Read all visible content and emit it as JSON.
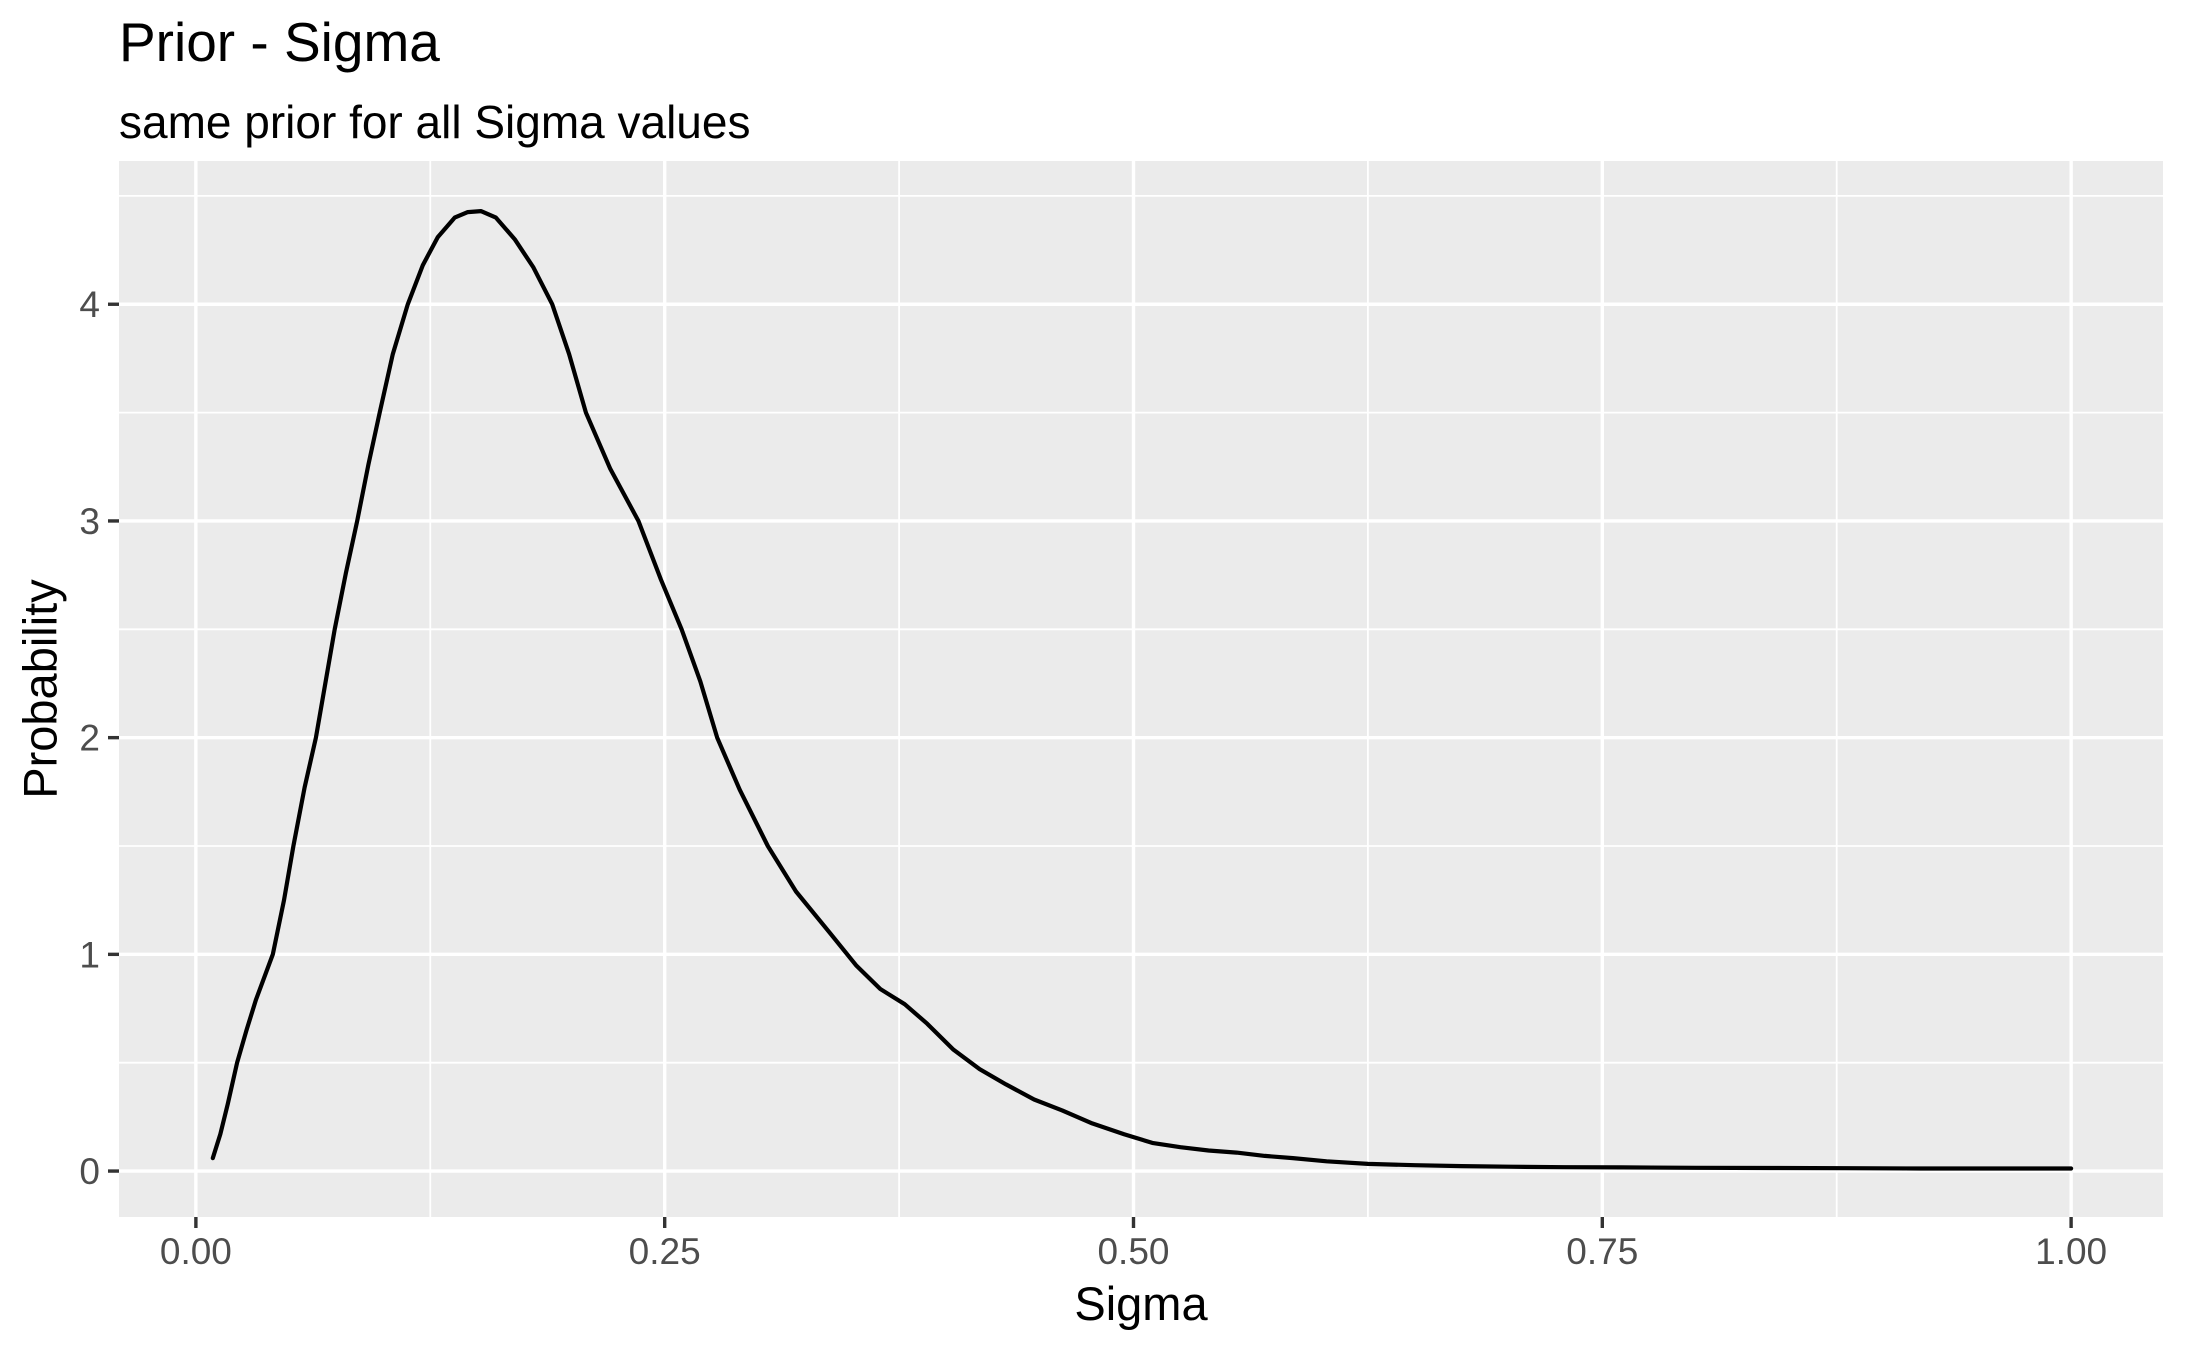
{
  "header": {
    "title": "Prior - Sigma",
    "subtitle": "same prior for all Sigma values"
  },
  "chart_data": {
    "type": "line",
    "title": "Prior - Sigma",
    "subtitle": "same prior for all Sigma values",
    "xlabel": "Sigma",
    "ylabel": "Probability",
    "legend": "none",
    "grid": true,
    "style": {
      "panel_background": "#EBEBEB",
      "grid_color": "#FFFFFF",
      "line_color": "#000000",
      "axis_text_color": "#4D4D4D",
      "tick_mark_color": "#333333",
      "title_color": "#000000"
    },
    "xlim": [
      -0.041,
      1.049
    ],
    "ylim": [
      -0.212,
      4.661
    ],
    "x_ticks": {
      "values": [
        0,
        0.25,
        0.5,
        0.75,
        1.0
      ],
      "labels": [
        "0.00",
        "0.25",
        "0.50",
        "0.75",
        "1.00"
      ]
    },
    "y_ticks": {
      "values": [
        0,
        1,
        2,
        3,
        4
      ],
      "labels": [
        "0",
        "1",
        "2",
        "3",
        "4"
      ]
    },
    "x_minor": [
      0.125,
      0.375,
      0.625,
      0.875
    ],
    "y_minor": [
      0.5,
      1.5,
      2.5,
      3.5,
      4.5
    ],
    "series": [
      {
        "name": "sigma-prior-density",
        "points": [
          [
            0.009,
            0.06
          ],
          [
            0.013,
            0.17
          ],
          [
            0.017,
            0.31
          ],
          [
            0.022,
            0.5
          ],
          [
            0.027,
            0.65
          ],
          [
            0.032,
            0.79
          ],
          [
            0.041,
            1.0
          ],
          [
            0.047,
            1.25
          ],
          [
            0.052,
            1.5
          ],
          [
            0.058,
            1.77
          ],
          [
            0.064,
            2.0
          ],
          [
            0.069,
            2.25
          ],
          [
            0.074,
            2.5
          ],
          [
            0.08,
            2.76
          ],
          [
            0.086,
            3.0
          ],
          [
            0.092,
            3.26
          ],
          [
            0.098,
            3.5
          ],
          [
            0.105,
            3.77
          ],
          [
            0.113,
            4.0
          ],
          [
            0.121,
            4.18
          ],
          [
            0.129,
            4.31
          ],
          [
            0.138,
            4.4
          ],
          [
            0.145,
            4.425
          ],
          [
            0.152,
            4.43
          ],
          [
            0.16,
            4.4
          ],
          [
            0.17,
            4.3
          ],
          [
            0.18,
            4.17
          ],
          [
            0.19,
            4.0
          ],
          [
            0.199,
            3.77
          ],
          [
            0.208,
            3.5
          ],
          [
            0.221,
            3.24
          ],
          [
            0.236,
            3.0
          ],
          [
            0.248,
            2.73
          ],
          [
            0.259,
            2.5
          ],
          [
            0.269,
            2.26
          ],
          [
            0.278,
            2.0
          ],
          [
            0.29,
            1.76
          ],
          [
            0.305,
            1.5
          ],
          [
            0.32,
            1.29
          ],
          [
            0.338,
            1.1
          ],
          [
            0.352,
            0.95
          ],
          [
            0.365,
            0.84
          ],
          [
            0.378,
            0.77
          ],
          [
            0.39,
            0.68
          ],
          [
            0.404,
            0.56
          ],
          [
            0.418,
            0.47
          ],
          [
            0.432,
            0.4
          ],
          [
            0.447,
            0.33
          ],
          [
            0.462,
            0.28
          ],
          [
            0.478,
            0.22
          ],
          [
            0.495,
            0.17
          ],
          [
            0.51,
            0.13
          ],
          [
            0.525,
            0.11
          ],
          [
            0.54,
            0.095
          ],
          [
            0.555,
            0.085
          ],
          [
            0.57,
            0.07
          ],
          [
            0.585,
            0.06
          ],
          [
            0.603,
            0.045
          ],
          [
            0.625,
            0.033
          ],
          [
            0.65,
            0.027
          ],
          [
            0.675,
            0.023
          ],
          [
            0.7,
            0.02
          ],
          [
            0.73,
            0.018
          ],
          [
            0.76,
            0.017
          ],
          [
            0.8,
            0.015
          ],
          [
            0.84,
            0.014
          ],
          [
            0.88,
            0.013
          ],
          [
            0.92,
            0.012
          ],
          [
            0.96,
            0.012
          ],
          [
            1.0,
            0.012
          ]
        ]
      }
    ]
  }
}
